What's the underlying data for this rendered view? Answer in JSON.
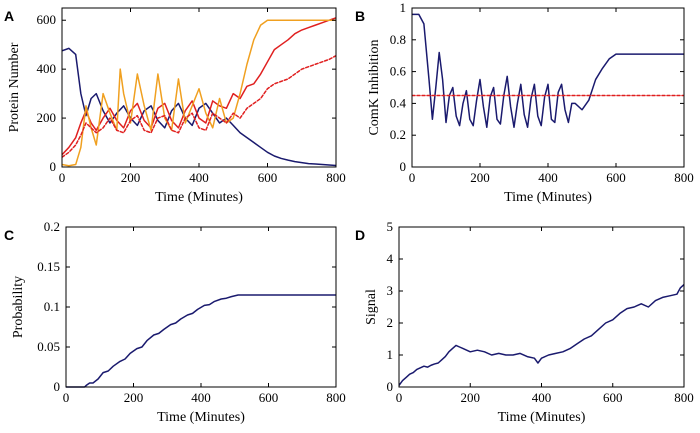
{
  "colors": {
    "navy": "#1a1a6e",
    "red": "#e02020",
    "orange": "#f0a020",
    "dotted_red": "#e02020"
  },
  "chart_data": [
    {
      "id": "A",
      "panel_label": "A",
      "type": "line",
      "xlabel": "Time (Minutes)",
      "ylabel": "Protein Number",
      "xlim": [
        0,
        800
      ],
      "ylim": [
        0,
        650
      ],
      "xticks": [
        0,
        200,
        400,
        600,
        800
      ],
      "yticks": [
        0,
        200,
        400,
        600
      ],
      "series": [
        {
          "name": "navy",
          "color": "navy",
          "x": [
            0,
            20,
            40,
            55,
            70,
            85,
            100,
            120,
            140,
            160,
            180,
            200,
            220,
            240,
            260,
            280,
            300,
            320,
            340,
            360,
            380,
            400,
            420,
            440,
            460,
            480,
            500,
            520,
            540,
            560,
            580,
            600,
            620,
            640,
            660,
            680,
            700,
            720,
            740,
            760,
            780,
            800
          ],
          "y": [
            475,
            485,
            460,
            300,
            210,
            280,
            300,
            230,
            180,
            220,
            250,
            200,
            170,
            230,
            250,
            190,
            160,
            230,
            260,
            200,
            170,
            240,
            260,
            220,
            180,
            200,
            170,
            140,
            120,
            100,
            80,
            60,
            45,
            35,
            28,
            22,
            18,
            14,
            12,
            10,
            8,
            6
          ]
        },
        {
          "name": "red",
          "color": "red",
          "x": [
            0,
            20,
            40,
            55,
            70,
            85,
            100,
            120,
            140,
            160,
            180,
            200,
            220,
            240,
            260,
            280,
            300,
            320,
            340,
            360,
            380,
            400,
            420,
            440,
            460,
            480,
            500,
            520,
            540,
            560,
            580,
            600,
            620,
            640,
            660,
            680,
            700,
            720,
            740,
            760,
            780,
            800
          ],
          "y": [
            50,
            80,
            120,
            180,
            230,
            180,
            150,
            200,
            240,
            190,
            160,
            230,
            260,
            190,
            160,
            240,
            260,
            190,
            160,
            230,
            270,
            200,
            180,
            270,
            250,
            240,
            300,
            280,
            330,
            340,
            380,
            430,
            480,
            500,
            520,
            545,
            560,
            570,
            580,
            590,
            600,
            610
          ]
        },
        {
          "name": "orange",
          "color": "orange",
          "x": [
            0,
            20,
            40,
            55,
            70,
            85,
            100,
            120,
            140,
            160,
            170,
            180,
            200,
            220,
            240,
            260,
            280,
            300,
            320,
            340,
            360,
            380,
            400,
            420,
            440,
            460,
            480,
            500,
            520,
            540,
            560,
            580,
            600,
            620,
            640,
            660,
            680,
            700,
            720,
            740,
            760,
            780,
            800
          ],
          "y": [
            10,
            5,
            10,
            80,
            250,
            160,
            90,
            300,
            220,
            150,
            400,
            300,
            180,
            380,
            250,
            150,
            380,
            200,
            150,
            360,
            180,
            250,
            320,
            220,
            160,
            280,
            180,
            200,
            300,
            420,
            520,
            580,
            600,
            600,
            600,
            600,
            600,
            600,
            600,
            600,
            600,
            600,
            600
          ]
        },
        {
          "name": "red-dotted",
          "color": "dotted_red",
          "dashed": true,
          "x": [
            0,
            20,
            40,
            55,
            70,
            85,
            100,
            120,
            140,
            160,
            180,
            200,
            220,
            240,
            260,
            280,
            300,
            320,
            340,
            360,
            380,
            400,
            420,
            440,
            460,
            480,
            500,
            520,
            540,
            560,
            580,
            600,
            620,
            640,
            660,
            680,
            700,
            720,
            740,
            760,
            780,
            800
          ],
          "y": [
            40,
            60,
            90,
            130,
            180,
            160,
            140,
            160,
            200,
            150,
            140,
            190,
            210,
            150,
            140,
            200,
            210,
            150,
            140,
            200,
            220,
            160,
            150,
            220,
            200,
            180,
            220,
            200,
            240,
            260,
            280,
            320,
            340,
            350,
            360,
            380,
            400,
            410,
            420,
            430,
            440,
            455
          ]
        }
      ]
    },
    {
      "id": "B",
      "panel_label": "B",
      "type": "line",
      "xlabel": "Time (Minutes)",
      "ylabel": "ComK Inhibition",
      "xlim": [
        0,
        800
      ],
      "ylim": [
        0,
        1
      ],
      "xticks": [
        0,
        200,
        400,
        600,
        800
      ],
      "yticks": [
        0,
        0.2,
        0.4,
        0.6,
        0.8,
        1
      ],
      "ytick_labels": [
        "0",
        "0.2",
        "0.4",
        "0.6",
        "0.8",
        "1"
      ],
      "series": [
        {
          "name": "inhibition",
          "color": "navy",
          "x": [
            0,
            20,
            35,
            50,
            60,
            70,
            80,
            90,
            100,
            110,
            120,
            130,
            140,
            150,
            160,
            170,
            180,
            190,
            200,
            210,
            220,
            230,
            240,
            250,
            260,
            270,
            280,
            290,
            300,
            310,
            320,
            330,
            340,
            350,
            360,
            370,
            380,
            390,
            400,
            410,
            420,
            430,
            440,
            450,
            460,
            470,
            480,
            500,
            520,
            540,
            560,
            580,
            600,
            620,
            640,
            660,
            680,
            700,
            720,
            740,
            760,
            780,
            800
          ],
          "y": [
            0.96,
            0.96,
            0.9,
            0.55,
            0.3,
            0.5,
            0.72,
            0.55,
            0.28,
            0.45,
            0.5,
            0.32,
            0.26,
            0.4,
            0.48,
            0.3,
            0.26,
            0.42,
            0.55,
            0.38,
            0.25,
            0.44,
            0.5,
            0.3,
            0.27,
            0.45,
            0.57,
            0.38,
            0.25,
            0.4,
            0.52,
            0.33,
            0.25,
            0.43,
            0.52,
            0.32,
            0.26,
            0.44,
            0.52,
            0.3,
            0.28,
            0.47,
            0.52,
            0.36,
            0.28,
            0.4,
            0.4,
            0.36,
            0.42,
            0.55,
            0.62,
            0.68,
            0.71,
            0.71,
            0.71,
            0.71,
            0.71,
            0.71,
            0.71,
            0.71,
            0.71,
            0.71,
            0.71
          ]
        },
        {
          "name": "threshold",
          "color": "dotted_red",
          "dashed": true,
          "x": [
            0,
            800
          ],
          "y": [
            0.45,
            0.45
          ]
        }
      ]
    },
    {
      "id": "C",
      "panel_label": "C",
      "type": "line",
      "xlabel": "Time (Minutes)",
      "ylabel": "Probability",
      "xlim": [
        0,
        800
      ],
      "ylim": [
        0,
        0.2
      ],
      "xticks": [
        0,
        200,
        400,
        600,
        800
      ],
      "yticks": [
        0,
        0.05,
        0.1,
        0.15,
        0.2
      ],
      "ytick_labels": [
        "0",
        "0.05",
        "0.1",
        "0.15",
        "0.2"
      ],
      "series": [
        {
          "name": "probability",
          "color": "navy",
          "x": [
            0,
            55,
            60,
            70,
            80,
            95,
            110,
            125,
            140,
            160,
            175,
            190,
            210,
            225,
            240,
            260,
            275,
            290,
            310,
            325,
            340,
            360,
            375,
            390,
            410,
            425,
            440,
            460,
            475,
            490,
            510,
            520,
            540,
            600,
            700,
            800
          ],
          "y": [
            0,
            0,
            0.002,
            0.005,
            0.005,
            0.01,
            0.018,
            0.02,
            0.026,
            0.032,
            0.035,
            0.042,
            0.048,
            0.05,
            0.058,
            0.065,
            0.067,
            0.072,
            0.078,
            0.08,
            0.085,
            0.09,
            0.092,
            0.097,
            0.102,
            0.103,
            0.107,
            0.11,
            0.111,
            0.113,
            0.115,
            0.115,
            0.115,
            0.115,
            0.115,
            0.115
          ]
        }
      ]
    },
    {
      "id": "D",
      "panel_label": "D",
      "type": "line",
      "xlabel": "Time (Minutes)",
      "ylabel": "Signal",
      "xlim": [
        0,
        800
      ],
      "ylim": [
        0,
        5
      ],
      "xticks": [
        0,
        200,
        400,
        600,
        800
      ],
      "yticks": [
        0,
        1,
        2,
        3,
        4,
        5
      ],
      "series": [
        {
          "name": "signal",
          "color": "navy",
          "x": [
            0,
            10,
            20,
            30,
            40,
            50,
            60,
            70,
            80,
            90,
            100,
            110,
            120,
            130,
            140,
            150,
            160,
            170,
            180,
            190,
            200,
            220,
            240,
            260,
            280,
            300,
            320,
            340,
            360,
            380,
            390,
            400,
            420,
            440,
            460,
            480,
            500,
            520,
            540,
            560,
            580,
            600,
            620,
            640,
            660,
            680,
            700,
            720,
            740,
            760,
            780,
            790,
            800
          ],
          "y": [
            0.05,
            0.2,
            0.3,
            0.4,
            0.45,
            0.55,
            0.6,
            0.65,
            0.62,
            0.68,
            0.72,
            0.75,
            0.85,
            0.95,
            1.1,
            1.2,
            1.3,
            1.25,
            1.2,
            1.15,
            1.1,
            1.15,
            1.1,
            1.0,
            1.05,
            1.0,
            1.0,
            1.05,
            0.95,
            0.9,
            0.75,
            0.9,
            1.0,
            1.05,
            1.1,
            1.2,
            1.35,
            1.5,
            1.6,
            1.8,
            2.0,
            2.1,
            2.3,
            2.45,
            2.5,
            2.6,
            2.5,
            2.7,
            2.8,
            2.85,
            2.9,
            3.1,
            3.2
          ]
        }
      ]
    }
  ]
}
